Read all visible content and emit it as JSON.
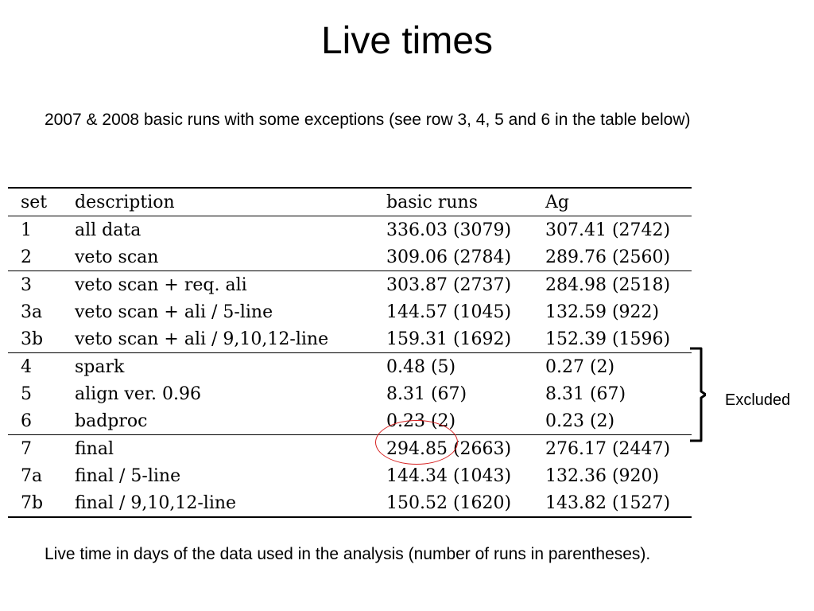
{
  "slide": {
    "title": "Live times",
    "intro": "2007 & 2008 basic runs with some exceptions (see row 3, 4, 5 and 6 in the table below)",
    "caption": "Live time in days of the data used in the analysis (number of runs in parentheses).",
    "excluded_label": "Excluded"
  },
  "table": {
    "headers": {
      "set": "set",
      "description": "description",
      "basic_runs": "basic runs",
      "ag": "Ag"
    },
    "rows": [
      {
        "set": "1",
        "description": "all data",
        "basic_runs": "336.03 (3079)",
        "ag": "307.41 (2742)"
      },
      {
        "set": "2",
        "description": "veto scan",
        "basic_runs": "309.06 (2784)",
        "ag": "289.76 (2560)"
      },
      {
        "set": "3",
        "description": "veto scan + req. ali",
        "basic_runs": "303.87 (2737)",
        "ag": "284.98 (2518)"
      },
      {
        "set": "3a",
        "description": "veto scan + ali / 5-line",
        "basic_runs": "144.57 (1045)",
        "ag": "132.59 (922)"
      },
      {
        "set": "3b",
        "description": "veto scan + ali / 9,10,12-line",
        "basic_runs": "159.31 (1692)",
        "ag": "152.39 (1596)"
      },
      {
        "set": "4",
        "description": "spark",
        "basic_runs": "0.48 (5)",
        "ag": "0.27 (2)"
      },
      {
        "set": "5",
        "description": "align ver. 0.96",
        "basic_runs": "8.31 (67)",
        "ag": "8.31 (67)"
      },
      {
        "set": "6",
        "description": "badproc",
        "basic_runs": "0.23 (2)",
        "ag": "0.23 (2)"
      },
      {
        "set": "7",
        "description": "final",
        "basic_runs": "294.85 (2663)",
        "ag": "276.17 (2447)"
      },
      {
        "set": "7a",
        "description": "final / 5-line",
        "basic_runs": "144.34 (1043)",
        "ag": "132.36 (920)"
      },
      {
        "set": "7b",
        "description": "final / 9,10,12-line",
        "basic_runs": "150.52 (1620)",
        "ag": "143.82 (1527)"
      }
    ]
  },
  "colors": {
    "highlight_circle": "#d62020",
    "text": "#000000",
    "background": "#ffffff"
  }
}
